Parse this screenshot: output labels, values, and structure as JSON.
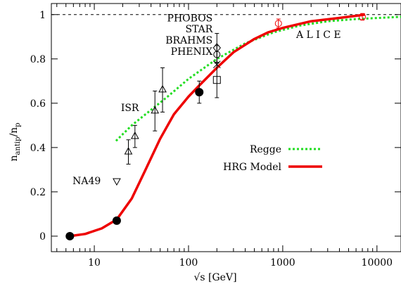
{
  "chart_data": {
    "type": "scatter",
    "xlabel": "√s [GeV]",
    "ylabel_main": "n",
    "ylabel_sub_num": "antip",
    "ylabel_mid": "/n",
    "ylabel_sub_den": "p",
    "xscale": "log",
    "xlim": [
      3.5,
      18000
    ],
    "ylim": [
      -0.07,
      1.05
    ],
    "x_ticks": [
      {
        "value": 10,
        "label": "10"
      },
      {
        "value": 100,
        "label": "100"
      },
      {
        "value": 1000,
        "label": "1000"
      },
      {
        "value": 10000,
        "label": "10000"
      }
    ],
    "y_ticks": [
      {
        "value": 0,
        "label": "0"
      },
      {
        "value": 0.2,
        "label": "0.2"
      },
      {
        "value": 0.4,
        "label": "0.4"
      },
      {
        "value": 0.6,
        "label": "0.6"
      },
      {
        "value": 0.8,
        "label": "0.8"
      },
      {
        "value": 1,
        "label": "1"
      }
    ],
    "grid": false,
    "reference_line": {
      "y": 1.0,
      "style": "dashed",
      "color": "#000000"
    },
    "legend": {
      "position": "right",
      "entries": [
        {
          "name": "Regge",
          "color": "#22dd22",
          "style": "dotted"
        },
        {
          "name": "HRG Model",
          "color": "#ee0000",
          "style": "solid"
        }
      ]
    },
    "series": [
      {
        "name": "HRG Model",
        "kind": "line",
        "color": "#ee0000",
        "x": [
          5.5,
          8,
          12,
          17.3,
          25,
          35,
          50,
          70,
          100,
          130,
          200,
          300,
          500,
          700,
          1000,
          2000,
          4000,
          7500
        ],
        "y": [
          0.0,
          0.01,
          0.035,
          0.075,
          0.17,
          0.3,
          0.44,
          0.55,
          0.63,
          0.68,
          0.76,
          0.83,
          0.89,
          0.92,
          0.94,
          0.97,
          0.985,
          1.0
        ]
      },
      {
        "name": "Regge",
        "kind": "line",
        "color": "#22dd22",
        "x": [
          17,
          25,
          40,
          60,
          100,
          200,
          400,
          800,
          1500,
          3000,
          6000,
          18000
        ],
        "y": [
          0.43,
          0.5,
          0.57,
          0.63,
          0.71,
          0.8,
          0.87,
          0.92,
          0.95,
          0.97,
          0.98,
          0.99
        ]
      },
      {
        "name": "HRG points",
        "kind": "points",
        "marker": "filled-circle",
        "color": "#000000",
        "x": [
          5.5,
          17.3,
          130
        ],
        "y": [
          0.0,
          0.07,
          0.65
        ],
        "yerr": [
          0,
          0,
          0.05
        ]
      },
      {
        "name": "ISR",
        "kind": "points",
        "marker": "triangle-up",
        "color": "#000000",
        "x": [
          23,
          27,
          44,
          53
        ],
        "y": [
          0.38,
          0.45,
          0.565,
          0.66
        ],
        "yerr": [
          0.055,
          0.05,
          0.09,
          0.1
        ]
      },
      {
        "name": "NA49",
        "kind": "points",
        "marker": "triangle-down",
        "color": "#000000",
        "x": [
          17.3
        ],
        "y": [
          0.25
        ],
        "yerr": [
          0
        ]
      },
      {
        "name": "PHOBOS",
        "kind": "points",
        "marker": "diamond",
        "color": "#000000",
        "x": [
          200
        ],
        "y": [
          0.85
        ],
        "yerr": [
          0.065
        ]
      },
      {
        "name": "STAR",
        "kind": "points",
        "marker": "cross",
        "color": "#000000",
        "x": [
          200
        ],
        "y": [
          0.775
        ],
        "yerr": [
          0
        ]
      },
      {
        "name": "BRAHMS",
        "kind": "points",
        "marker": "open-circle",
        "color": "#000000",
        "x": [
          200
        ],
        "y": [
          0.82
        ],
        "yerr": [
          0.04
        ]
      },
      {
        "name": "PHENIX",
        "kind": "points",
        "marker": "open-square",
        "color": "#000000",
        "x": [
          200
        ],
        "y": [
          0.705
        ],
        "yerr": [
          0.08
        ]
      },
      {
        "name": "ALICE",
        "kind": "points",
        "marker": "open-circle",
        "color": "#ee0000",
        "x": [
          900,
          7000
        ],
        "y": [
          0.96,
          0.99
        ],
        "yerr": [
          0.02,
          0.015
        ]
      }
    ],
    "annotations": [
      {
        "text": "PHOBOS",
        "x": 200,
        "y": 0.985,
        "anchor": "end"
      },
      {
        "text": "STAR",
        "x": 200,
        "y": 0.935,
        "anchor": "end"
      },
      {
        "text": "BRAHMS",
        "x": 200,
        "y": 0.885,
        "anchor": "end"
      },
      {
        "text": "PHENIX",
        "x": 200,
        "y": 0.835,
        "anchor": "end"
      },
      {
        "text": "ISR",
        "x": 33,
        "y": 0.58,
        "anchor": "end"
      },
      {
        "text": "NA49",
        "x": 13,
        "y": 0.25,
        "anchor": "end"
      },
      {
        "text": "A  L  I  C  E",
        "x": 2400,
        "y": 0.91,
        "anchor": "middle"
      }
    ]
  }
}
